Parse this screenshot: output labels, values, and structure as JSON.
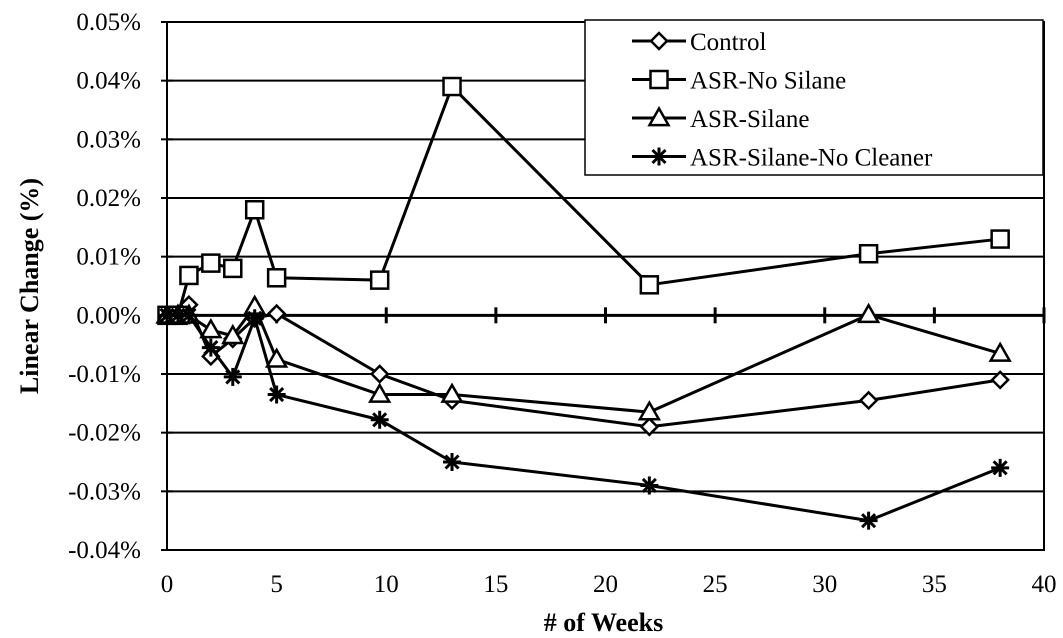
{
  "chart_data": {
    "type": "line",
    "xlabel": "# of Weeks",
    "ylabel": "Linear Change (%)",
    "xlim": [
      0,
      40
    ],
    "ylim": [
      -0.04,
      0.05
    ],
    "x_ticks": [
      0,
      5,
      10,
      15,
      20,
      25,
      30,
      35,
      40
    ],
    "y_ticks": [
      -0.04,
      -0.03,
      -0.02,
      -0.01,
      0.0,
      0.01,
      0.02,
      0.03,
      0.04,
      0.05
    ],
    "x_tick_labels": [
      "0",
      "5",
      "10",
      "15",
      "20",
      "25",
      "30",
      "35",
      "40"
    ],
    "y_tick_labels": [
      "-0.04%",
      "-0.03%",
      "-0.02%",
      "-0.01%",
      "0.00%",
      "0.01%",
      "0.02%",
      "0.03%",
      "0.04%",
      "0.05%"
    ],
    "grid": "horizontal",
    "legend_position": "top-right",
    "series": [
      {
        "name": "Control",
        "marker": "diamond",
        "x": [
          0,
          0.5,
          1,
          2,
          3,
          4,
          5,
          9.7,
          13,
          22,
          32,
          38
        ],
        "y": [
          0.0,
          0.0,
          0.0018,
          -0.007,
          -0.004,
          -0.0005,
          0.0003,
          -0.01,
          -0.0145,
          -0.019,
          -0.0145,
          -0.011
        ]
      },
      {
        "name": "ASR-No Silane",
        "marker": "square",
        "x": [
          0,
          0.5,
          1,
          2,
          3,
          4,
          5,
          9.7,
          13,
          22,
          32,
          38
        ],
        "y": [
          0.0,
          0.0,
          0.0068,
          0.0089,
          0.008,
          0.018,
          0.0064,
          0.006,
          0.039,
          0.0052,
          0.0105,
          0.013
        ]
      },
      {
        "name": "ASR-Silane",
        "marker": "triangle",
        "x": [
          0,
          0.5,
          1,
          2,
          3,
          4,
          5,
          9.7,
          13,
          22,
          32,
          38
        ],
        "y": [
          0.0,
          0.0,
          0.0,
          -0.0025,
          -0.0035,
          0.0015,
          -0.0075,
          -0.0135,
          -0.0135,
          -0.0165,
          0.0001,
          -0.0065
        ]
      },
      {
        "name": "ASR-Silane-No Cleaner",
        "marker": "asterisk",
        "x": [
          0,
          0.5,
          1,
          2,
          3,
          4,
          5,
          9.7,
          13,
          22,
          32,
          38
        ],
        "y": [
          0.0,
          0.0,
          0.0,
          -0.0055,
          -0.0105,
          -0.0005,
          -0.0135,
          -0.0178,
          -0.025,
          -0.029,
          -0.035,
          -0.026
        ]
      }
    ]
  }
}
